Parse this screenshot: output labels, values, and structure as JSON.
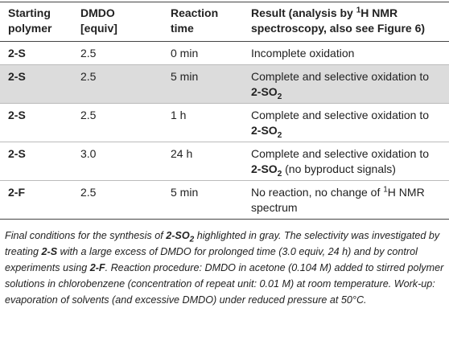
{
  "table": {
    "header": [
      [
        "Starting",
        "polymer"
      ],
      [
        "DMDO",
        "[equiv]"
      ],
      [
        "Reaction",
        "time"
      ],
      [
        "Result (analysis by",
        "1",
        "H NMR",
        "spectroscopy, also see Figure 6)"
      ]
    ],
    "rows": [
      [
        [
          "2-S"
        ],
        [
          "2.5"
        ],
        [
          "0 min"
        ],
        [
          "Incomplete oxidation"
        ]
      ],
      [
        [
          "2-S"
        ],
        [
          "2.5"
        ],
        [
          "5 min"
        ],
        [
          "Complete and selective oxidation to",
          "2-SO",
          "2"
        ]
      ],
      [
        [
          "2-S"
        ],
        [
          "2.5"
        ],
        [
          "1 h"
        ],
        [
          "Complete and selective oxidation to",
          "2-SO",
          "2"
        ]
      ],
      [
        [
          "2-S"
        ],
        [
          "3.0"
        ],
        [
          "24 h"
        ],
        [
          "Complete and selective oxidation to",
          "2-SO",
          "2",
          "(no byproduct signals)"
        ]
      ],
      [
        [
          "2-F"
        ],
        [
          "2.5"
        ],
        [
          "5 min"
        ],
        [
          "No reaction, no change of",
          "1",
          "H NMR",
          "spectrum"
        ]
      ]
    ]
  },
  "caption": [
    "Final conditions for the synthesis of",
    "2-SO",
    "2",
    "highlighted in gray. The selectivity was investigated by treating",
    "2-S",
    "with a large excess of DMDO for prolonged time (3.0 equiv, 24 h) and by control experiments using",
    "2-F",
    ". Reaction procedure: DMDO in acetone (0.104 M) added to stirred polymer solutions in chlorobenzene (concentration of repeat unit: 0.01 M) at room temperature. Work-up: evaporation of solvents (and excessive DMDO) under reduced pressure at 50°C."
  ]
}
